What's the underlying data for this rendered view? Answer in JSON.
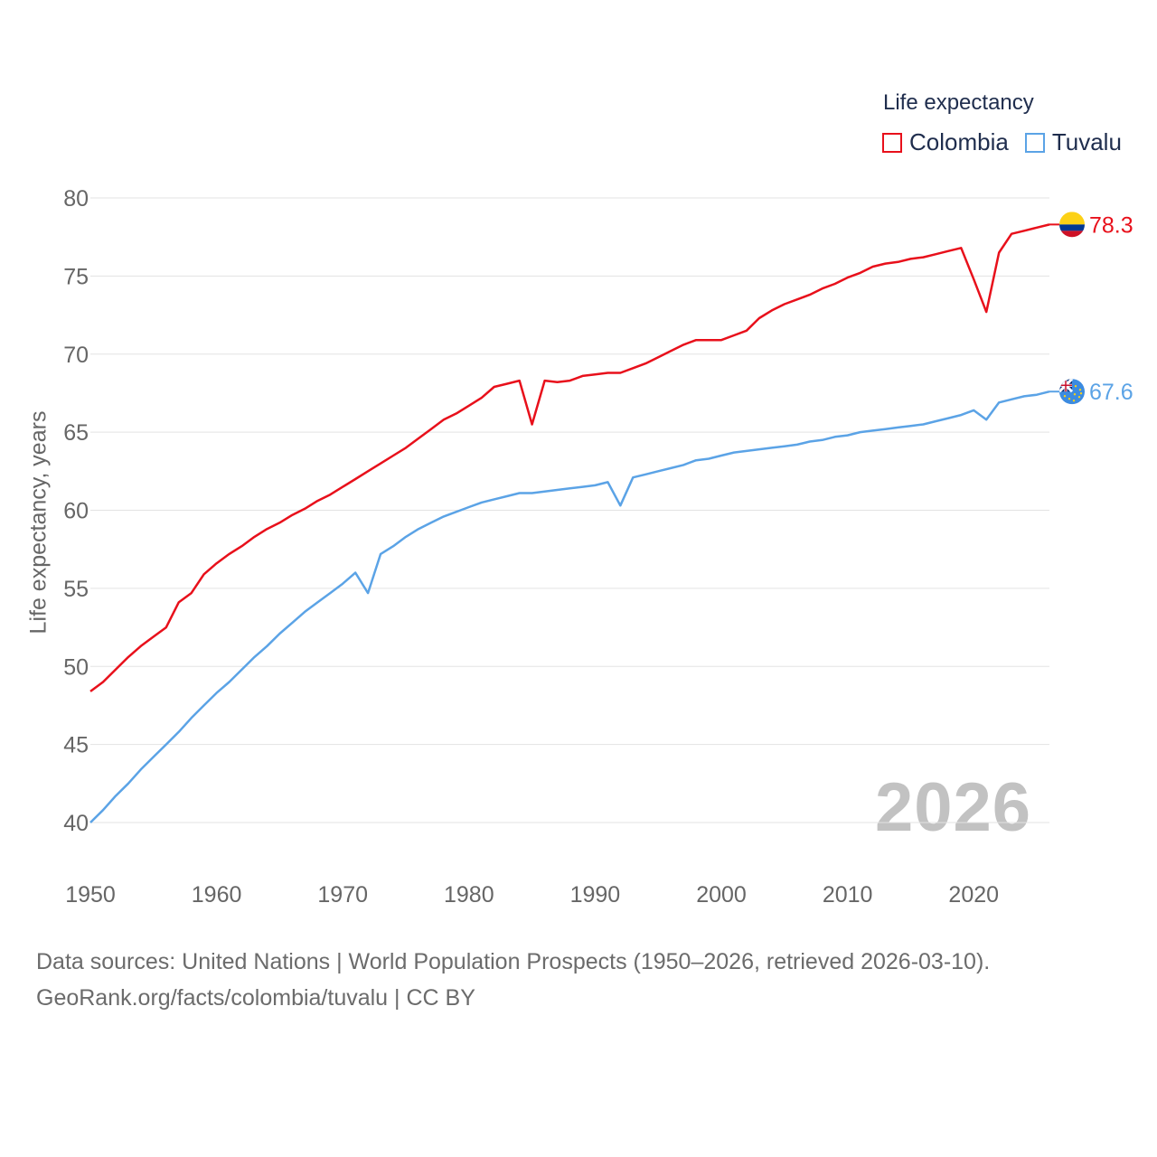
{
  "legend": {
    "title": "Life expectancy",
    "items": [
      {
        "label": "Colombia",
        "color": "#e8101b"
      },
      {
        "label": "Tuvalu",
        "color": "#5ba3e6"
      }
    ]
  },
  "watermark_year": "2026",
  "source": {
    "line1": "Data sources: United Nations | World Population Prospects (1950–2026, retrieved 2026-03-10).",
    "line2": "GeoRank.org/facts/colombia/tuvalu | CC BY"
  },
  "chart_data": {
    "type": "line",
    "title": "Life expectancy",
    "xlabel": "",
    "ylabel": "Life expectancy, years",
    "xlim": [
      1950,
      2026
    ],
    "ylim": [
      40,
      80
    ],
    "xticks": [
      1950,
      1960,
      1970,
      1980,
      1990,
      2000,
      2010,
      2020
    ],
    "yticks": [
      40,
      45,
      50,
      55,
      60,
      65,
      70,
      75,
      80
    ],
    "grid": true,
    "legend_position": "top-right",
    "series": [
      {
        "name": "Colombia",
        "color": "#e8101b",
        "end_label": "78.3",
        "flag": "colombia",
        "points": [
          [
            1950,
            48.4
          ],
          [
            1951,
            49.0
          ],
          [
            1952,
            49.8
          ],
          [
            1953,
            50.6
          ],
          [
            1954,
            51.3
          ],
          [
            1955,
            51.9
          ],
          [
            1956,
            52.5
          ],
          [
            1957,
            54.1
          ],
          [
            1958,
            54.7
          ],
          [
            1959,
            55.9
          ],
          [
            1960,
            56.6
          ],
          [
            1961,
            57.2
          ],
          [
            1962,
            57.7
          ],
          [
            1963,
            58.3
          ],
          [
            1964,
            58.8
          ],
          [
            1965,
            59.2
          ],
          [
            1966,
            59.7
          ],
          [
            1967,
            60.1
          ],
          [
            1968,
            60.6
          ],
          [
            1969,
            61.0
          ],
          [
            1970,
            61.5
          ],
          [
            1971,
            62.0
          ],
          [
            1972,
            62.5
          ],
          [
            1973,
            63.0
          ],
          [
            1974,
            63.5
          ],
          [
            1975,
            64.0
          ],
          [
            1976,
            64.6
          ],
          [
            1977,
            65.2
          ],
          [
            1978,
            65.8
          ],
          [
            1979,
            66.2
          ],
          [
            1980,
            66.7
          ],
          [
            1981,
            67.2
          ],
          [
            1982,
            67.9
          ],
          [
            1983,
            68.1
          ],
          [
            1984,
            68.3
          ],
          [
            1985,
            65.5
          ],
          [
            1986,
            68.3
          ],
          [
            1987,
            68.2
          ],
          [
            1988,
            68.3
          ],
          [
            1989,
            68.6
          ],
          [
            1990,
            68.7
          ],
          [
            1991,
            68.8
          ],
          [
            1992,
            68.8
          ],
          [
            1993,
            69.1
          ],
          [
            1994,
            69.4
          ],
          [
            1995,
            69.8
          ],
          [
            1996,
            70.2
          ],
          [
            1997,
            70.6
          ],
          [
            1998,
            70.9
          ],
          [
            1999,
            70.9
          ],
          [
            2000,
            70.9
          ],
          [
            2001,
            71.2
          ],
          [
            2002,
            71.5
          ],
          [
            2003,
            72.3
          ],
          [
            2004,
            72.8
          ],
          [
            2005,
            73.2
          ],
          [
            2006,
            73.5
          ],
          [
            2007,
            73.8
          ],
          [
            2008,
            74.2
          ],
          [
            2009,
            74.5
          ],
          [
            2010,
            74.9
          ],
          [
            2011,
            75.2
          ],
          [
            2012,
            75.6
          ],
          [
            2013,
            75.8
          ],
          [
            2014,
            75.9
          ],
          [
            2015,
            76.1
          ],
          [
            2016,
            76.2
          ],
          [
            2017,
            76.4
          ],
          [
            2018,
            76.6
          ],
          [
            2019,
            76.8
          ],
          [
            2020,
            74.8
          ],
          [
            2021,
            72.7
          ],
          [
            2022,
            76.5
          ],
          [
            2023,
            77.7
          ],
          [
            2024,
            77.9
          ],
          [
            2025,
            78.1
          ],
          [
            2026,
            78.3
          ]
        ]
      },
      {
        "name": "Tuvalu",
        "color": "#5ba3e6",
        "end_label": "67.6",
        "flag": "tuvalu",
        "points": [
          [
            1950,
            40.0
          ],
          [
            1951,
            40.8
          ],
          [
            1952,
            41.7
          ],
          [
            1953,
            42.5
          ],
          [
            1954,
            43.4
          ],
          [
            1955,
            44.2
          ],
          [
            1956,
            45.0
          ],
          [
            1957,
            45.8
          ],
          [
            1958,
            46.7
          ],
          [
            1959,
            47.5
          ],
          [
            1960,
            48.3
          ],
          [
            1961,
            49.0
          ],
          [
            1962,
            49.8
          ],
          [
            1963,
            50.6
          ],
          [
            1964,
            51.3
          ],
          [
            1965,
            52.1
          ],
          [
            1966,
            52.8
          ],
          [
            1967,
            53.5
          ],
          [
            1968,
            54.1
          ],
          [
            1969,
            54.7
          ],
          [
            1970,
            55.3
          ],
          [
            1971,
            56.0
          ],
          [
            1972,
            54.7
          ],
          [
            1973,
            57.2
          ],
          [
            1974,
            57.7
          ],
          [
            1975,
            58.3
          ],
          [
            1976,
            58.8
          ],
          [
            1977,
            59.2
          ],
          [
            1978,
            59.6
          ],
          [
            1979,
            59.9
          ],
          [
            1980,
            60.2
          ],
          [
            1981,
            60.5
          ],
          [
            1982,
            60.7
          ],
          [
            1983,
            60.9
          ],
          [
            1984,
            61.1
          ],
          [
            1985,
            61.1
          ],
          [
            1986,
            61.2
          ],
          [
            1987,
            61.3
          ],
          [
            1988,
            61.4
          ],
          [
            1989,
            61.5
          ],
          [
            1990,
            61.6
          ],
          [
            1991,
            61.8
          ],
          [
            1992,
            60.3
          ],
          [
            1993,
            62.1
          ],
          [
            1994,
            62.3
          ],
          [
            1995,
            62.5
          ],
          [
            1996,
            62.7
          ],
          [
            1997,
            62.9
          ],
          [
            1998,
            63.2
          ],
          [
            1999,
            63.3
          ],
          [
            2000,
            63.5
          ],
          [
            2001,
            63.7
          ],
          [
            2002,
            63.8
          ],
          [
            2003,
            63.9
          ],
          [
            2004,
            64.0
          ],
          [
            2005,
            64.1
          ],
          [
            2006,
            64.2
          ],
          [
            2007,
            64.4
          ],
          [
            2008,
            64.5
          ],
          [
            2009,
            64.7
          ],
          [
            2010,
            64.8
          ],
          [
            2011,
            65.0
          ],
          [
            2012,
            65.1
          ],
          [
            2013,
            65.2
          ],
          [
            2014,
            65.3
          ],
          [
            2015,
            65.4
          ],
          [
            2016,
            65.5
          ],
          [
            2017,
            65.7
          ],
          [
            2018,
            65.9
          ],
          [
            2019,
            66.1
          ],
          [
            2020,
            66.4
          ],
          [
            2021,
            65.8
          ],
          [
            2022,
            66.9
          ],
          [
            2023,
            67.1
          ],
          [
            2024,
            67.3
          ],
          [
            2025,
            67.4
          ],
          [
            2026,
            67.6
          ]
        ]
      }
    ]
  }
}
